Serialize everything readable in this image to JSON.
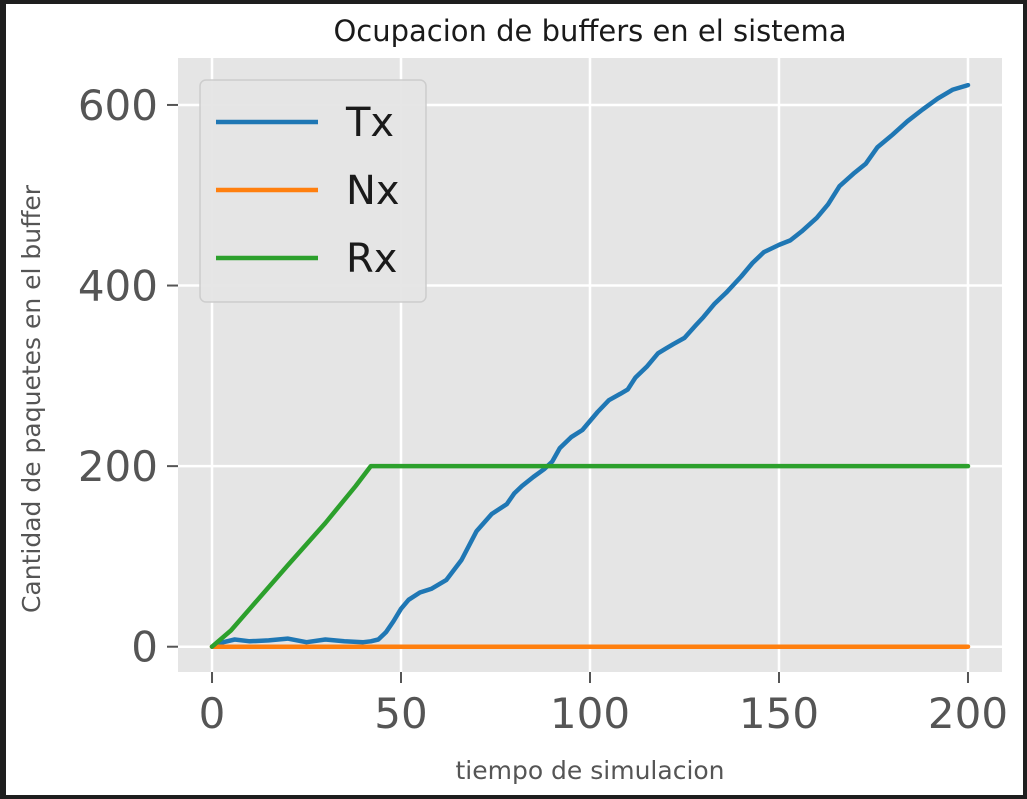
{
  "chart_data": {
    "type": "line",
    "title": "Ocupacion de buffers en el sistema",
    "xlabel": "tiempo de simulacion",
    "ylabel": "Cantidad de paquetes en el buffer",
    "xlim": [
      -9,
      209
    ],
    "ylim": [
      -28,
      652
    ],
    "xticks": [
      0,
      50,
      100,
      150,
      200
    ],
    "yticks": [
      0,
      200,
      400,
      600
    ],
    "grid": true,
    "legend_position": "top-left",
    "background_color": "#e5e5e5",
    "series": [
      {
        "name": "Tx",
        "color": "#1f77b4",
        "x": [
          0,
          3,
          6,
          10,
          15,
          20,
          25,
          30,
          35,
          40,
          42,
          44,
          46,
          48,
          50,
          52,
          55,
          58,
          62,
          66,
          70,
          74,
          78,
          80,
          82,
          85,
          88,
          90,
          92,
          95,
          98,
          100,
          102,
          105,
          108,
          110,
          112,
          115,
          118,
          120,
          122,
          125,
          128,
          130,
          133,
          136,
          140,
          143,
          146,
          150,
          153,
          156,
          160,
          163,
          166,
          170,
          173,
          176,
          180,
          184,
          188,
          192,
          196,
          200
        ],
        "values": [
          0,
          5,
          8,
          6,
          7,
          9,
          5,
          8,
          6,
          5,
          6,
          8,
          16,
          28,
          42,
          52,
          60,
          64,
          74,
          96,
          128,
          147,
          158,
          170,
          178,
          188,
          197,
          205,
          220,
          232,
          240,
          250,
          260,
          273,
          280,
          285,
          298,
          310,
          325,
          330,
          335,
          342,
          356,
          365,
          380,
          392,
          410,
          425,
          437,
          445,
          450,
          460,
          475,
          490,
          510,
          525,
          535,
          553,
          567,
          582,
          595,
          607,
          617,
          622
        ]
      },
      {
        "name": "Nx",
        "color": "#ff7f0e",
        "x": [
          0,
          200
        ],
        "values": [
          0,
          0
        ]
      },
      {
        "name": "Rx",
        "color": "#2ca02c",
        "x": [
          0,
          5,
          10,
          20,
          30,
          38,
          42,
          43,
          50,
          100,
          150,
          200
        ],
        "values": [
          0,
          18,
          42,
          90,
          137,
          178,
          200,
          200,
          200,
          200,
          200,
          200
        ]
      }
    ]
  }
}
